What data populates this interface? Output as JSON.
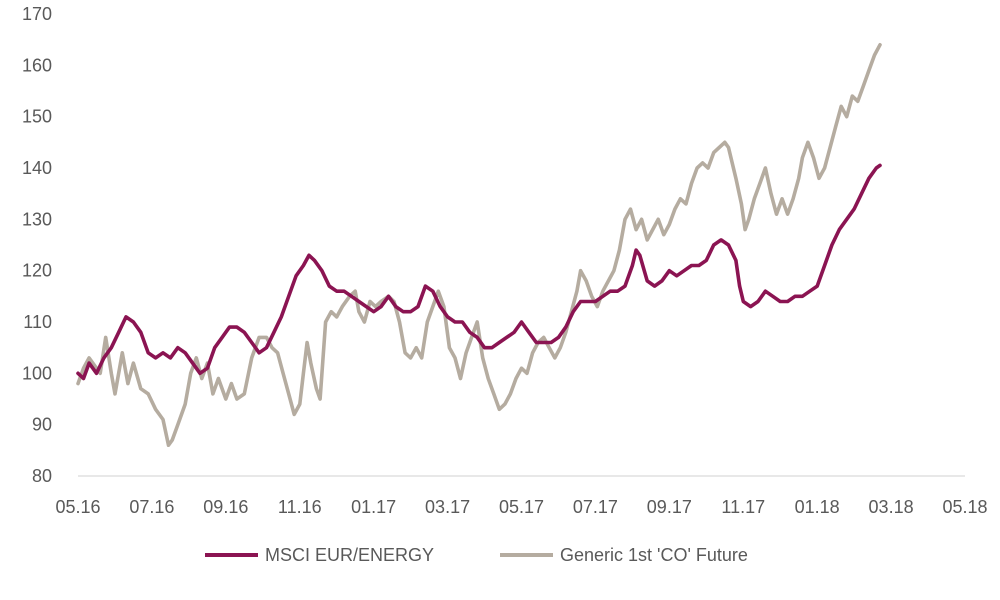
{
  "chart_data": {
    "type": "line",
    "title": "",
    "xlabel": "",
    "ylabel": "",
    "ylim": [
      80,
      170
    ],
    "yticks": [
      80,
      90,
      100,
      110,
      120,
      130,
      140,
      150,
      160,
      170
    ],
    "x_tick_labels": [
      "05.16",
      "07.16",
      "09.16",
      "11.16",
      "01.17",
      "03.17",
      "05.17",
      "07.17",
      "09.17",
      "11.17",
      "01.18",
      "03.18",
      "05.18"
    ],
    "grid": false,
    "legend_position": "bottom",
    "series": [
      {
        "name": "MSCI EUR/ENERGY",
        "color": "#8b1452",
        "values": [
          [
            0.0,
            100
          ],
          [
            0.15,
            99
          ],
          [
            0.3,
            102
          ],
          [
            0.5,
            100
          ],
          [
            0.7,
            103
          ],
          [
            0.9,
            105
          ],
          [
            1.1,
            108
          ],
          [
            1.3,
            111
          ],
          [
            1.5,
            110
          ],
          [
            1.7,
            108
          ],
          [
            1.9,
            104
          ],
          [
            2.1,
            103
          ],
          [
            2.3,
            104
          ],
          [
            2.5,
            103
          ],
          [
            2.7,
            105
          ],
          [
            2.9,
            104
          ],
          [
            3.1,
            102
          ],
          [
            3.3,
            100
          ],
          [
            3.5,
            101
          ],
          [
            3.7,
            105
          ],
          [
            3.9,
            107
          ],
          [
            4.1,
            109
          ],
          [
            4.3,
            109
          ],
          [
            4.5,
            108
          ],
          [
            4.7,
            106
          ],
          [
            4.9,
            104
          ],
          [
            5.1,
            105
          ],
          [
            5.3,
            108
          ],
          [
            5.5,
            111
          ],
          [
            5.7,
            115
          ],
          [
            5.9,
            119
          ],
          [
            6.1,
            121
          ],
          [
            6.25,
            123
          ],
          [
            6.4,
            122
          ],
          [
            6.6,
            120
          ],
          [
            6.8,
            117
          ],
          [
            7.0,
            116
          ],
          [
            7.2,
            116
          ],
          [
            7.4,
            115
          ],
          [
            7.6,
            114
          ],
          [
            7.8,
            113
          ],
          [
            8.0,
            112
          ],
          [
            8.2,
            113
          ],
          [
            8.4,
            115
          ],
          [
            8.6,
            113
          ],
          [
            8.8,
            112
          ],
          [
            9.0,
            112
          ],
          [
            9.2,
            113
          ],
          [
            9.4,
            117
          ],
          [
            9.6,
            116
          ],
          [
            9.8,
            113
          ],
          [
            10.0,
            111
          ],
          [
            10.2,
            110
          ],
          [
            10.4,
            110
          ],
          [
            10.6,
            108
          ],
          [
            10.8,
            107
          ],
          [
            11.0,
            105
          ],
          [
            11.2,
            105
          ],
          [
            11.4,
            106
          ],
          [
            11.6,
            107
          ],
          [
            11.8,
            108
          ],
          [
            12.0,
            110
          ],
          [
            12.2,
            108
          ],
          [
            12.4,
            106
          ],
          [
            12.6,
            106
          ],
          [
            12.8,
            106
          ],
          [
            13.0,
            107
          ],
          [
            13.2,
            109
          ],
          [
            13.4,
            112
          ],
          [
            13.6,
            114
          ],
          [
            13.8,
            114
          ],
          [
            14.0,
            114
          ],
          [
            14.2,
            115
          ],
          [
            14.4,
            116
          ],
          [
            14.6,
            116
          ],
          [
            14.8,
            117
          ],
          [
            15.0,
            121
          ],
          [
            15.1,
            124
          ],
          [
            15.2,
            123
          ],
          [
            15.4,
            118
          ],
          [
            15.6,
            117
          ],
          [
            15.8,
            118
          ],
          [
            16.0,
            120
          ],
          [
            16.2,
            119
          ],
          [
            16.4,
            120
          ],
          [
            16.6,
            121
          ],
          [
            16.8,
            121
          ],
          [
            17.0,
            122
          ],
          [
            17.2,
            125
          ],
          [
            17.4,
            126
          ],
          [
            17.6,
            125
          ],
          [
            17.8,
            122
          ],
          [
            17.9,
            117
          ],
          [
            18.0,
            114
          ],
          [
            18.2,
            113
          ],
          [
            18.4,
            114
          ],
          [
            18.6,
            116
          ],
          [
            18.8,
            115
          ],
          [
            19.0,
            114
          ],
          [
            19.2,
            114
          ],
          [
            19.4,
            115
          ],
          [
            19.6,
            115
          ],
          [
            19.8,
            116
          ],
          [
            20.0,
            117
          ],
          [
            20.2,
            121
          ],
          [
            20.4,
            125
          ],
          [
            20.6,
            128
          ],
          [
            20.8,
            130
          ],
          [
            21.0,
            132
          ],
          [
            21.2,
            135
          ],
          [
            21.4,
            138
          ],
          [
            21.6,
            140
          ],
          [
            21.7,
            140.5
          ]
        ]
      },
      {
        "name": "Generic 1st 'CO' Future",
        "color": "#b5aca0",
        "values": [
          [
            0.0,
            98
          ],
          [
            0.15,
            101
          ],
          [
            0.3,
            103
          ],
          [
            0.5,
            101
          ],
          [
            0.6,
            100
          ],
          [
            0.75,
            107
          ],
          [
            0.9,
            100
          ],
          [
            1.0,
            96
          ],
          [
            1.2,
            104
          ],
          [
            1.35,
            98
          ],
          [
            1.5,
            102
          ],
          [
            1.7,
            97
          ],
          [
            1.9,
            96
          ],
          [
            2.1,
            93
          ],
          [
            2.3,
            91
          ],
          [
            2.45,
            86
          ],
          [
            2.55,
            87
          ],
          [
            2.7,
            90
          ],
          [
            2.9,
            94
          ],
          [
            3.05,
            100
          ],
          [
            3.2,
            103
          ],
          [
            3.35,
            99
          ],
          [
            3.5,
            102
          ],
          [
            3.65,
            96
          ],
          [
            3.8,
            99
          ],
          [
            4.0,
            95
          ],
          [
            4.15,
            98
          ],
          [
            4.3,
            95
          ],
          [
            4.5,
            96
          ],
          [
            4.7,
            103
          ],
          [
            4.9,
            107
          ],
          [
            5.1,
            107
          ],
          [
            5.25,
            105
          ],
          [
            5.4,
            104
          ],
          [
            5.55,
            100
          ],
          [
            5.7,
            96
          ],
          [
            5.85,
            92
          ],
          [
            6.0,
            94
          ],
          [
            6.1,
            100
          ],
          [
            6.2,
            106
          ],
          [
            6.3,
            102
          ],
          [
            6.45,
            97
          ],
          [
            6.55,
            95
          ],
          [
            6.7,
            110
          ],
          [
            6.85,
            112
          ],
          [
            7.0,
            111
          ],
          [
            7.15,
            113
          ],
          [
            7.35,
            115
          ],
          [
            7.5,
            116
          ],
          [
            7.6,
            112
          ],
          [
            7.75,
            110
          ],
          [
            7.9,
            114
          ],
          [
            8.05,
            113
          ],
          [
            8.2,
            114
          ],
          [
            8.4,
            115
          ],
          [
            8.55,
            114
          ],
          [
            8.7,
            110
          ],
          [
            8.85,
            104
          ],
          [
            9.0,
            103
          ],
          [
            9.15,
            105
          ],
          [
            9.3,
            103
          ],
          [
            9.45,
            110
          ],
          [
            9.6,
            113
          ],
          [
            9.75,
            116
          ],
          [
            9.9,
            113
          ],
          [
            10.05,
            105
          ],
          [
            10.2,
            103
          ],
          [
            10.35,
            99
          ],
          [
            10.5,
            104
          ],
          [
            10.65,
            107
          ],
          [
            10.8,
            110
          ],
          [
            10.95,
            103
          ],
          [
            11.1,
            99
          ],
          [
            11.25,
            96
          ],
          [
            11.4,
            93
          ],
          [
            11.55,
            94
          ],
          [
            11.7,
            96
          ],
          [
            11.85,
            99
          ],
          [
            12.0,
            101
          ],
          [
            12.15,
            100
          ],
          [
            12.3,
            104
          ],
          [
            12.45,
            106
          ],
          [
            12.6,
            107
          ],
          [
            12.75,
            105
          ],
          [
            12.9,
            103
          ],
          [
            13.05,
            105
          ],
          [
            13.2,
            108
          ],
          [
            13.35,
            112
          ],
          [
            13.5,
            116
          ],
          [
            13.6,
            120
          ],
          [
            13.75,
            118
          ],
          [
            13.9,
            115
          ],
          [
            14.05,
            113
          ],
          [
            14.2,
            116
          ],
          [
            14.35,
            118
          ],
          [
            14.5,
            120
          ],
          [
            14.65,
            124
          ],
          [
            14.8,
            130
          ],
          [
            14.95,
            132
          ],
          [
            15.1,
            128
          ],
          [
            15.25,
            130
          ],
          [
            15.4,
            126
          ],
          [
            15.55,
            128
          ],
          [
            15.7,
            130
          ],
          [
            15.85,
            127
          ],
          [
            16.0,
            129
          ],
          [
            16.15,
            132
          ],
          [
            16.3,
            134
          ],
          [
            16.45,
            133
          ],
          [
            16.6,
            137
          ],
          [
            16.75,
            140
          ],
          [
            16.9,
            141
          ],
          [
            17.05,
            140
          ],
          [
            17.2,
            143
          ],
          [
            17.35,
            144
          ],
          [
            17.5,
            145
          ],
          [
            17.6,
            144
          ],
          [
            17.7,
            141
          ],
          [
            17.8,
            138
          ],
          [
            17.95,
            133
          ],
          [
            18.05,
            128
          ],
          [
            18.15,
            130
          ],
          [
            18.3,
            134
          ],
          [
            18.45,
            137
          ],
          [
            18.6,
            140
          ],
          [
            18.75,
            135
          ],
          [
            18.9,
            131
          ],
          [
            19.05,
            134
          ],
          [
            19.2,
            131
          ],
          [
            19.35,
            134
          ],
          [
            19.5,
            138
          ],
          [
            19.6,
            142
          ],
          [
            19.75,
            145
          ],
          [
            19.9,
            142
          ],
          [
            20.05,
            138
          ],
          [
            20.2,
            140
          ],
          [
            20.35,
            144
          ],
          [
            20.5,
            148
          ],
          [
            20.65,
            152
          ],
          [
            20.8,
            150
          ],
          [
            20.95,
            154
          ],
          [
            21.1,
            153
          ],
          [
            21.25,
            156
          ],
          [
            21.4,
            159
          ],
          [
            21.55,
            162
          ],
          [
            21.7,
            164
          ]
        ]
      }
    ]
  }
}
